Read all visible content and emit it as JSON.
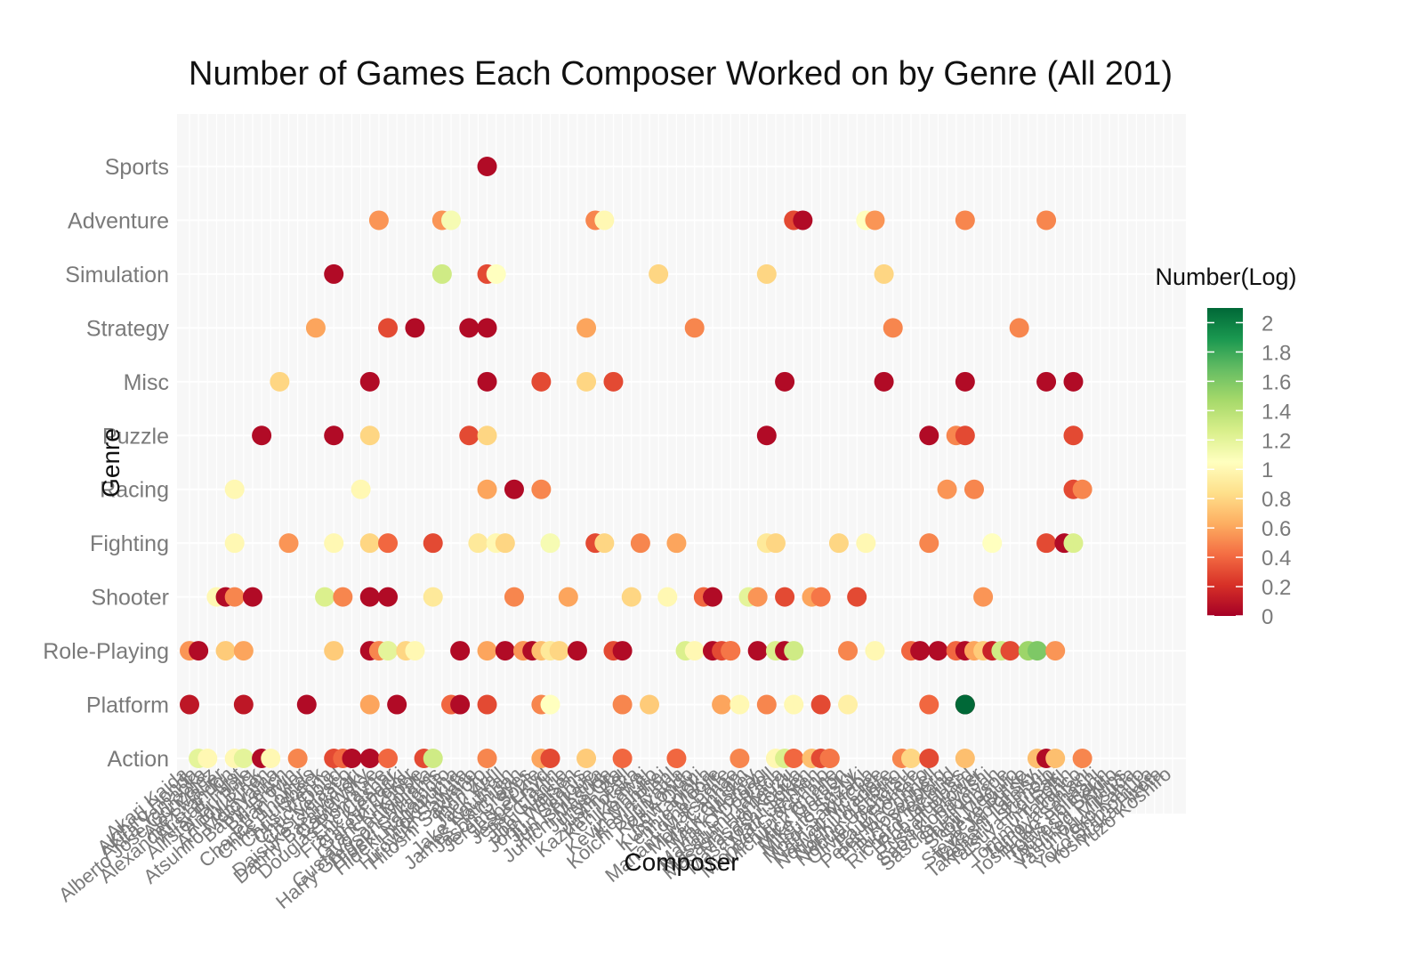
{
  "chart_data": {
    "type": "scatter",
    "title": "Number of Games Each Composer Worked on by Genre (All 201)",
    "xlabel": "Composer",
    "ylabel": "Genre",
    "genres": [
      "Action",
      "Platform",
      "Role-Playing",
      "Shooter",
      "Fighting",
      "Racing",
      "Puzzle",
      "Misc",
      "Strategy",
      "Simulation",
      "Adventure",
      "Sports"
    ],
    "composers": [
      "Akari Kaida",
      "Akihiro Honda",
      "Akira Yamaoka",
      "Alberto Jose Gonzalez",
      "Alex Mauer",
      "Alexander Brandon",
      "Alistair Hirst",
      "Allister Brimble",
      "Andy Brick",
      "Ari Pulkkinen",
      "Atsuhiro Motoyama",
      "Barry Leitch",
      "Bill Brown",
      "Brian Tyler",
      "Chance Thomas",
      "Chris Hulsbeck",
      "Chris Vrenna",
      "Chuck Doud",
      "Cris Velasco",
      "Daisuke Ishiwatari",
      "Danny Baranowsky",
      "David Wise",
      "Douglas Romayne",
      "Eric Caspar",
      "Frank Klepacki",
      "Gareth Coker",
      "Grant Kirkhope",
      "Gustavo Santaolalla",
      "Harry Gregson-Williams",
      "Hideki Sakamoto",
      "Hideki Naganuma",
      "Hiroki Kikuta",
      "Hiroyuki Sawano",
      "Hitoshi Sakimoto",
      "Inon Zur",
      "Jack Wall",
      "Jake Kaufman",
      "James Hannigan",
      "Jason Graves",
      "Jeremy Soule",
      "Jesper Kyd",
      "Jesse Harlin",
      "Jim Guthrie",
      "Joel Nielsen",
      "John Williams",
      "Jun Senoue",
      "Jun Ishikawa",
      "Junichi Masuda",
      "Junya Ota",
      "Justin Bell",
      "Kazumi Totaka",
      "Kenji Kawai",
      "Kenji Ito",
      "Kevin Manthei",
      "Kevin Riepl",
      "Koichi Sugiyama",
      "Koji Kondo",
      "Kow Otani",
      "Kumi Tanioka",
      "Lennie Moore",
      "Lorne Balfe",
      "Manami Matsumae",
      "Marc Canham",
      "Mark Griskey",
      "Mark Morgan",
      "Martin O'Donnell",
      "Masafumi Takada",
      "Masashi Hamauzu",
      "Masato Kouda",
      "Masayoshi Soken",
      "Matt Uelmen",
      "Michael Giacchino",
      "Michiru Yamane",
      "Mick Gordon",
      "Mike Morasky",
      "Mitsuto Suzuki",
      "Motoi Sakuraba",
      "Nathan McCree",
      "Noriyuki Iwadare",
      "Norihiko Hibino",
      "Nobuo Uematsu",
      "Olivier Deriviere",
      "Paul Romero",
      "Peter McConnell",
      "Phil Rosenberg",
      "Rich Vreeland",
      "Richard Jacques",
      "Rob Hubbard",
      "Russell Brower",
      "Saori Kobayashi",
      "Sascha Dikiciyan",
      "Shinji Hosoe",
      "Shoji Meguro",
      "Steve Burke",
      "Steve Jablonsky",
      "Takashi Tateishi",
      "Takeharu Ishimoto",
      "Tatsuya Kousaki",
      "Tim Follin",
      "Tommy Tallarico",
      "Tomoya Ohtani",
      "Toshihiko Sahashi",
      "Troels Folmann",
      "Tsuyoshi Sekito",
      "Winifred Phillips",
      "Yasunori Mitsuda",
      "Yoko Kanno",
      "Yoko Shimomura",
      "Yoshitaka Hirota",
      "Yuzo Koshiro"
    ],
    "points": [
      [
        0,
        1,
        0.1
      ],
      [
        0,
        2,
        0.55
      ],
      [
        1,
        2,
        0.05
      ],
      [
        1,
        0,
        1.2
      ],
      [
        2,
        0,
        1.0
      ],
      [
        3,
        3,
        1.0
      ],
      [
        4,
        3,
        0.05
      ],
      [
        5,
        3,
        0.5
      ],
      [
        4,
        2,
        0.75
      ],
      [
        5,
        0,
        1.0
      ],
      [
        6,
        0,
        1.2
      ],
      [
        6,
        1,
        0.1
      ],
      [
        6,
        2,
        0.6
      ],
      [
        5,
        4,
        1.0
      ],
      [
        5,
        5,
        1.0
      ],
      [
        7,
        3,
        0.05
      ],
      [
        8,
        0,
        0.05
      ],
      [
        8,
        6,
        0.05
      ],
      [
        9,
        0,
        1.0
      ],
      [
        11,
        4,
        0.55
      ],
      [
        10,
        7,
        0.8
      ],
      [
        12,
        0,
        0.5
      ],
      [
        13,
        1,
        0.05
      ],
      [
        14,
        8,
        0.6
      ],
      [
        15,
        3,
        1.25
      ],
      [
        16,
        0,
        0.3
      ],
      [
        16,
        4,
        1.0
      ],
      [
        16,
        6,
        0.05
      ],
      [
        16,
        9,
        0.05
      ],
      [
        16,
        2,
        0.75
      ],
      [
        17,
        0,
        0.4
      ],
      [
        17,
        3,
        0.5
      ],
      [
        18,
        0,
        0.05
      ],
      [
        19,
        5,
        1.0
      ],
      [
        20,
        0,
        0.05
      ],
      [
        20,
        2,
        0.05
      ],
      [
        20,
        3,
        0.05
      ],
      [
        20,
        4,
        0.8
      ],
      [
        20,
        6,
        0.8
      ],
      [
        20,
        7,
        0.05
      ],
      [
        20,
        1,
        0.6
      ],
      [
        21,
        2,
        0.5
      ],
      [
        21,
        10,
        0.55
      ],
      [
        22,
        0,
        0.4
      ],
      [
        22,
        2,
        1.2
      ],
      [
        22,
        3,
        0.05
      ],
      [
        22,
        4,
        0.4
      ],
      [
        22,
        8,
        0.3
      ],
      [
        23,
        1,
        0.05
      ],
      [
        24,
        2,
        0.8
      ],
      [
        25,
        8,
        0.05
      ],
      [
        25,
        2,
        1.0
      ],
      [
        26,
        0,
        0.3
      ],
      [
        27,
        0,
        1.3
      ],
      [
        27,
        3,
        0.9
      ],
      [
        27,
        4,
        0.3
      ],
      [
        28,
        9,
        1.3
      ],
      [
        28,
        10,
        0.55
      ],
      [
        29,
        1,
        0.4
      ],
      [
        29,
        10,
        1.1
      ],
      [
        30,
        1,
        0.05
      ],
      [
        30,
        2,
        0.05
      ],
      [
        31,
        6,
        0.3
      ],
      [
        31,
        8,
        0.05
      ],
      [
        32,
        4,
        0.9
      ],
      [
        33,
        0,
        0.5
      ],
      [
        33,
        1,
        0.3
      ],
      [
        33,
        2,
        0.6
      ],
      [
        33,
        5,
        0.6
      ],
      [
        33,
        6,
        0.8
      ],
      [
        33,
        7,
        0.05
      ],
      [
        33,
        8,
        0.05
      ],
      [
        33,
        9,
        0.3
      ],
      [
        33,
        11,
        0.05
      ],
      [
        34,
        4,
        1.0
      ],
      [
        34,
        9,
        1.05
      ],
      [
        35,
        4,
        0.8
      ],
      [
        35,
        2,
        0.05
      ],
      [
        36,
        5,
        0.05
      ],
      [
        37,
        2,
        0.9
      ],
      [
        36,
        3,
        0.5
      ],
      [
        37,
        2,
        0.55
      ],
      [
        38,
        2,
        0.05
      ],
      [
        39,
        0,
        0.6
      ],
      [
        39,
        1,
        0.5
      ],
      [
        39,
        2,
        0.7
      ],
      [
        39,
        5,
        0.5
      ],
      [
        39,
        7,
        0.3
      ],
      [
        40,
        2,
        0.9
      ],
      [
        40,
        1,
        1.05
      ],
      [
        40,
        0,
        0.3
      ],
      [
        40,
        4,
        1.1
      ],
      [
        41,
        2,
        0.8
      ],
      [
        42,
        3,
        0.6
      ],
      [
        43,
        2,
        0.05
      ],
      [
        44,
        8,
        0.6
      ],
      [
        44,
        7,
        0.8
      ],
      [
        44,
        0,
        0.75
      ],
      [
        45,
        4,
        0.3
      ],
      [
        45,
        10,
        0.5
      ],
      [
        46,
        10,
        1.0
      ],
      [
        46,
        4,
        0.8
      ],
      [
        47,
        7,
        0.3
      ],
      [
        47,
        2,
        0.3
      ],
      [
        48,
        1,
        0.5
      ],
      [
        48,
        2,
        0.05
      ],
      [
        48,
        0,
        0.4
      ],
      [
        49,
        3,
        0.8
      ],
      [
        50,
        4,
        0.5
      ],
      [
        51,
        1,
        0.75
      ],
      [
        52,
        9,
        0.8
      ],
      [
        53,
        3,
        1.0
      ],
      [
        54,
        4,
        0.6
      ],
      [
        54,
        0,
        0.4
      ],
      [
        55,
        2,
        1.25
      ],
      [
        56,
        2,
        1.0
      ],
      [
        56,
        8,
        0.5
      ],
      [
        57,
        3,
        0.4
      ],
      [
        58,
        3,
        1.0
      ],
      [
        58,
        3,
        0.05
      ],
      [
        58,
        2,
        0.05
      ],
      [
        59,
        2,
        0.3
      ],
      [
        59,
        1,
        0.6
      ],
      [
        60,
        2,
        0.5
      ],
      [
        60,
        2,
        0.45
      ],
      [
        61,
        0,
        0.5
      ],
      [
        61,
        1,
        1.0
      ],
      [
        62,
        3,
        1.2
      ],
      [
        63,
        3,
        0.55
      ],
      [
        63,
        2,
        0.05
      ],
      [
        64,
        1,
        0.5
      ],
      [
        64,
        4,
        0.9
      ],
      [
        64,
        6,
        0.05
      ],
      [
        64,
        9,
        0.8
      ],
      [
        65,
        0,
        1.0
      ],
      [
        65,
        4,
        0.8
      ],
      [
        65,
        2,
        1.25
      ],
      [
        66,
        0,
        1.25
      ],
      [
        66,
        2,
        0.05
      ],
      [
        66,
        3,
        0.3
      ],
      [
        66,
        7,
        0.05
      ],
      [
        67,
        0,
        0.4
      ],
      [
        67,
        2,
        1.3
      ],
      [
        67,
        1,
        1.0
      ],
      [
        67,
        10,
        0.3
      ],
      [
        68,
        10,
        0.05
      ],
      [
        69,
        0,
        0.7
      ],
      [
        69,
        3,
        0.6
      ],
      [
        70,
        0,
        0.3
      ],
      [
        70,
        1,
        0.3
      ],
      [
        70,
        3,
        0.45
      ],
      [
        71,
        0,
        1.3
      ],
      [
        71,
        0,
        0.45
      ],
      [
        72,
        4,
        0.8
      ],
      [
        73,
        1,
        0.95
      ],
      [
        73,
        2,
        0.5
      ],
      [
        74,
        3,
        0.3
      ],
      [
        75,
        4,
        1.0
      ],
      [
        76,
        2,
        1.0
      ],
      [
        75,
        10,
        1.05
      ],
      [
        76,
        10,
        0.55
      ],
      [
        77,
        9,
        0.8
      ],
      [
        77,
        7,
        0.05
      ],
      [
        78,
        8,
        0.5
      ],
      [
        79,
        0,
        0.5
      ],
      [
        80,
        0,
        0.8
      ],
      [
        80,
        2,
        0.4
      ],
      [
        81,
        2,
        0.05
      ],
      [
        82,
        0,
        0.3
      ],
      [
        82,
        1,
        0.4
      ],
      [
        82,
        4,
        0.5
      ],
      [
        82,
        6,
        0.05
      ],
      [
        83,
        2,
        0.05
      ],
      [
        84,
        5,
        0.55
      ],
      [
        85,
        6,
        0.5
      ],
      [
        85,
        2,
        0.4
      ],
      [
        86,
        0,
        0.7
      ],
      [
        86,
        2,
        0.05
      ],
      [
        86,
        1,
        0.05
      ],
      [
        86,
        10,
        0.5
      ],
      [
        86,
        6,
        0.3
      ],
      [
        86,
        7,
        0.05
      ],
      [
        87,
        2,
        0.6
      ],
      [
        87,
        5,
        0.5
      ],
      [
        88,
        2,
        0.75
      ],
      [
        88,
        3,
        0.55
      ],
      [
        89,
        2,
        0.15
      ],
      [
        89,
        4,
        1.05
      ],
      [
        90,
        2,
        1.3
      ],
      [
        91,
        2,
        0.3
      ],
      [
        92,
        8,
        0.5
      ],
      [
        93,
        2,
        1.5
      ],
      [
        94,
        2,
        1.6
      ],
      [
        94,
        0,
        0.7
      ],
      [
        95,
        0,
        0.05
      ],
      [
        95,
        4,
        0.3
      ],
      [
        95,
        7,
        0.05
      ],
      [
        95,
        10,
        0.5
      ],
      [
        96,
        2,
        0.55
      ],
      [
        96,
        0,
        0.7
      ],
      [
        97,
        4,
        0.05
      ],
      [
        98,
        4,
        1.25
      ],
      [
        98,
        7,
        0.05
      ],
      [
        98,
        5,
        0.3
      ],
      [
        98,
        6,
        0.3
      ],
      [
        99,
        0,
        0.5
      ],
      [
        99,
        5,
        0.5
      ],
      [
        86,
        1,
        2.1
      ]
    ],
    "color_scale": {
      "title": "Number(Log)",
      "min": 0,
      "max": 2.1,
      "ticks": [
        "0",
        "0.2",
        "0.4",
        "0.6",
        "0.8",
        "1",
        "1.2",
        "1.4",
        "1.6",
        "1.8",
        "2"
      ],
      "palette": [
        "#a50026",
        "#d73027",
        "#f46d43",
        "#fdae61",
        "#fee08b",
        "#ffffbf",
        "#d9ef8b",
        "#a6d96a",
        "#66bd63",
        "#1a9850",
        "#006837"
      ]
    }
  }
}
